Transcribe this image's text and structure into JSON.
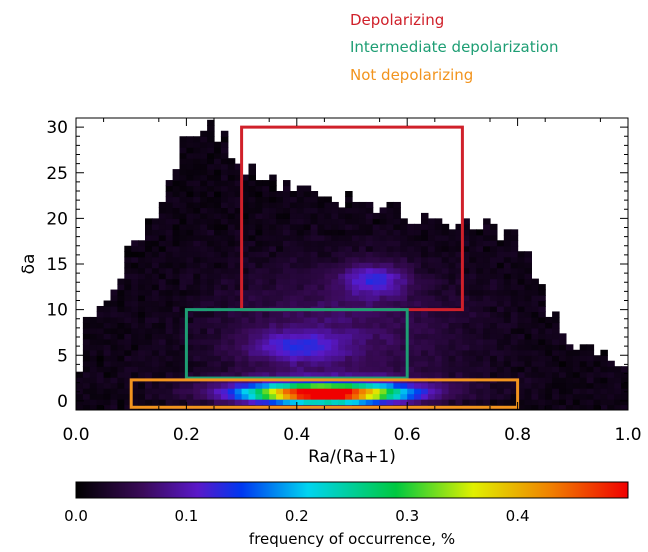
{
  "chart_data": {
    "type": "heatmap",
    "xlabel": "Ra/(Ra+1)",
    "ylabel": "δa",
    "xlim": [
      0.0,
      1.0
    ],
    "ylim": [
      -1,
      31
    ],
    "x_ticks": [
      "0.0",
      "0.2",
      "0.4",
      "0.6",
      "0.8",
      "1.0"
    ],
    "y_ticks": [
      "0",
      "5",
      "10",
      "15",
      "20",
      "25",
      "30"
    ],
    "colorbar": {
      "label": "frequency of occurrence, %",
      "range": [
        0.0,
        0.5
      ],
      "ticks": [
        "0.0",
        "0.1",
        "0.2",
        "0.3",
        "0.4"
      ],
      "colormap": "rainbow"
    },
    "regions": [
      {
        "name": "Depolarizing",
        "color": "#d0202a",
        "x_range": [
          0.3,
          0.7
        ],
        "y_range": [
          10,
          30
        ]
      },
      {
        "name": "Intermediate depolarization",
        "color": "#1e9e74",
        "x_range": [
          0.2,
          0.6
        ],
        "y_range": [
          2.5,
          10
        ]
      },
      {
        "name": "Not depolarizing",
        "color": "#f2941e",
        "x_range": [
          0.1,
          0.8
        ],
        "y_range": [
          -0.7,
          2.3
        ]
      }
    ],
    "hotspots": [
      {
        "x": 0.45,
        "y": 0.7,
        "value": 0.48
      },
      {
        "x": 0.54,
        "y": 13.3,
        "value": 0.14
      },
      {
        "x": 0.4,
        "y": 6.0,
        "value": 0.12
      }
    ]
  }
}
